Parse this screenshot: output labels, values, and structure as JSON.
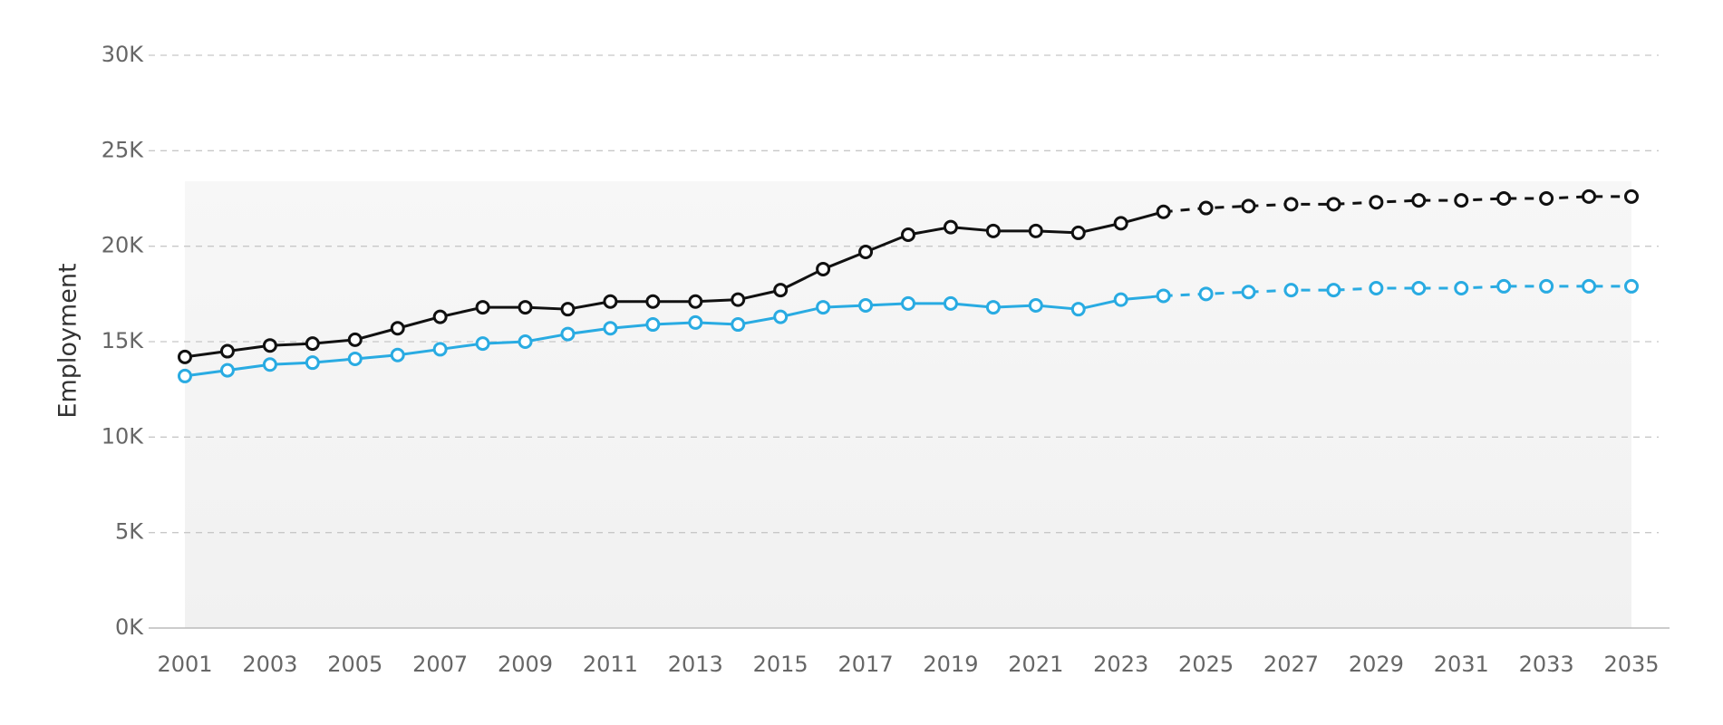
{
  "chart_data": {
    "type": "line",
    "y_label": "Employment",
    "x": [
      2001,
      2002,
      2003,
      2004,
      2005,
      2006,
      2007,
      2008,
      2009,
      2010,
      2011,
      2012,
      2013,
      2014,
      2015,
      2016,
      2017,
      2018,
      2019,
      2020,
      2021,
      2022,
      2023,
      2024,
      2025,
      2026,
      2027,
      2028,
      2029,
      2030,
      2031,
      2032,
      2033,
      2034,
      2035
    ],
    "xlim": [
      2001,
      2035
    ],
    "xticks": [
      2001,
      2003,
      2005,
      2007,
      2009,
      2011,
      2013,
      2015,
      2017,
      2019,
      2021,
      2023,
      2025,
      2027,
      2029,
      2031,
      2033,
      2035
    ],
    "ylim": [
      0,
      30000
    ],
    "yticks": [
      {
        "value": 0,
        "label": "0K"
      },
      {
        "value": 5000,
        "label": "5K"
      },
      {
        "value": 10000,
        "label": "10K"
      },
      {
        "value": 15000,
        "label": "15K"
      },
      {
        "value": 20000,
        "label": "20K"
      },
      {
        "value": 25000,
        "label": "25K"
      },
      {
        "value": 30000,
        "label": "30K"
      }
    ],
    "grid": true,
    "projection_from": 2024,
    "series": [
      {
        "color": "#111111",
        "values": [
          14200,
          14500,
          14800,
          14900,
          15100,
          15700,
          16300,
          16800,
          16800,
          16700,
          17100,
          17100,
          17100,
          17200,
          17700,
          18800,
          19700,
          20600,
          21000,
          20800,
          20800,
          20700,
          21200,
          21800,
          22000,
          22100,
          22200,
          22200,
          22300,
          22400,
          22400,
          22500,
          22500,
          22600,
          22600
        ]
      },
      {
        "color": "#29abe2",
        "values": [
          13200,
          13500,
          13800,
          13900,
          14100,
          14300,
          14600,
          14900,
          15000,
          15400,
          15700,
          15900,
          16000,
          15900,
          16300,
          16800,
          16900,
          17000,
          17000,
          16800,
          16900,
          16700,
          17200,
          17400,
          17500,
          17600,
          17700,
          17700,
          17800,
          17800,
          17800,
          17900,
          17900,
          17900,
          17900
        ]
      }
    ]
  }
}
